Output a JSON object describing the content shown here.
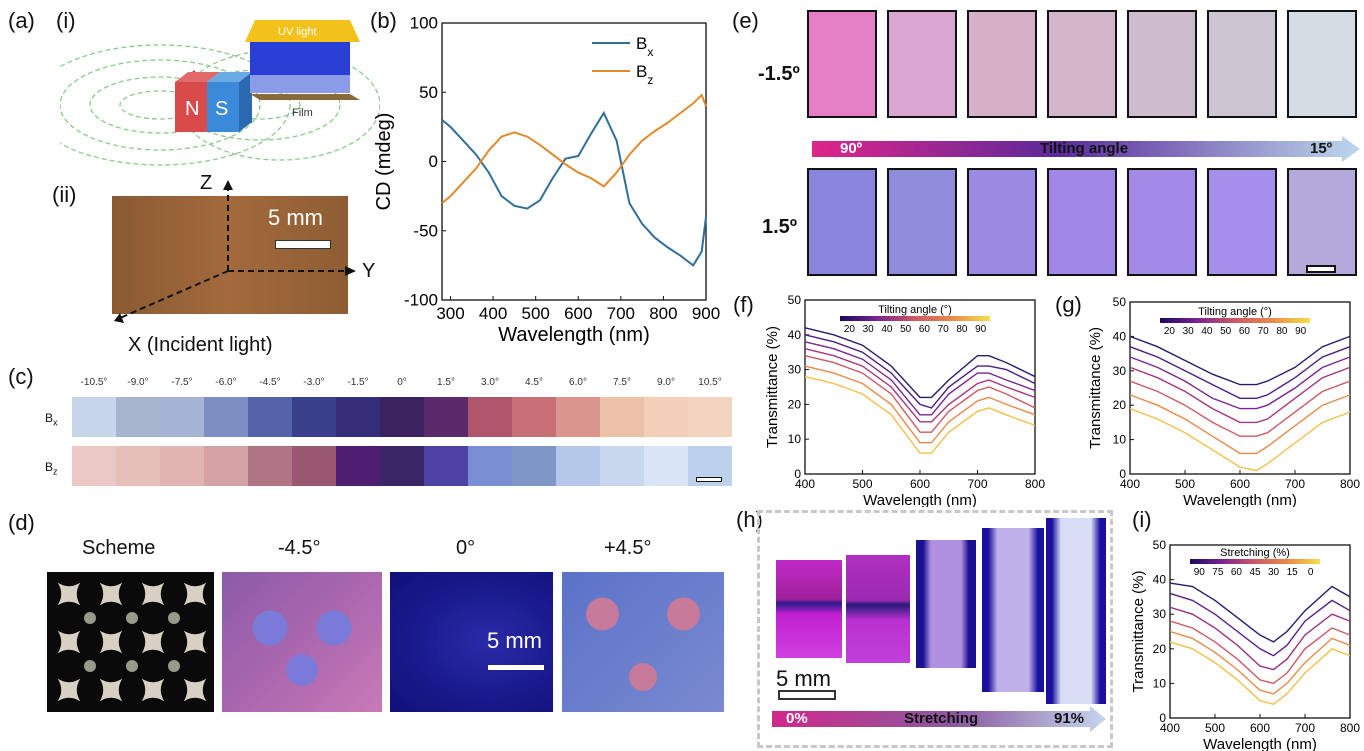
{
  "panel_labels": {
    "a": "(a)",
    "ai": "(i)",
    "aii": "(ii)",
    "b": "(b)",
    "c": "(c)",
    "d": "(d)",
    "e": "(e)",
    "f": "(f)",
    "g": "(g)",
    "h": "(h)",
    "i": "(i)"
  },
  "panel_a": {
    "uv_label": "UV light",
    "film_label": "Film",
    "magnet_n": "N",
    "magnet_s": "S",
    "axis_z": "Z",
    "axis_y": "Y",
    "axis_x": "X (Incident light)",
    "scale": "5 mm"
  },
  "panel_c": {
    "angles": [
      "-10.5°",
      "-9.0°",
      "-7.5°",
      "-6.0°",
      "-4.5°",
      "-3.0°",
      "-1.5°",
      "0°",
      "1.5°",
      "3.0°",
      "4.5°",
      "6.0°",
      "7.5°",
      "9.0°",
      "10.5°"
    ],
    "row_bx": "B",
    "row_bz": "B",
    "sub_x": "x",
    "sub_z": "z",
    "bx_colors": [
      "#c6d5e8",
      "#a8b5cf",
      "#a5b4d5",
      "#7d8fc2",
      "#5564a9",
      "#3a3f8c",
      "#342d78",
      "#3b235f",
      "#5a2a6a",
      "#b0566c",
      "#c67077",
      "#d9958e",
      "#edc0a8",
      "#f2cfb6",
      "#f2d4c0"
    ],
    "bz_colors": [
      "#ecc8c4",
      "#e6c0b8",
      "#e0b4b0",
      "#d4a2a2",
      "#b07584",
      "#9a5870",
      "#4e1e73",
      "#3a2566",
      "#4d43a4",
      "#7a8fd3",
      "#7f96c9",
      "#b6c8ea",
      "#c8d6ee",
      "#d9e5f4",
      "#bdd0ec"
    ]
  },
  "panel_d": {
    "labels": [
      "Scheme",
      "-4.5°",
      "0°",
      "+4.5°"
    ],
    "scale": "5 mm"
  },
  "panel_e": {
    "row1_label": "-1.5º",
    "row2_label": "1.5º",
    "arrow_start": "90º",
    "arrow_mid": "Tilting angle",
    "arrow_end": "15º",
    "row1_colors": [
      "#e680c6",
      "#d9a6cf",
      "#d6b0c7",
      "#d2b7cb",
      "#cdbccd",
      "#cdc6d2",
      "#d3dde3"
    ],
    "row2_colors": [
      "#8a85dc",
      "#8f8cdc",
      "#9a8ae2",
      "#a187e6",
      "#a28ae6",
      "#a58feb",
      "#b3aadb"
    ]
  },
  "panel_h": {
    "scale": "5 mm",
    "arrow_start": "0%",
    "arrow_mid": "Stretching",
    "arrow_end": "91%"
  },
  "chart_data": [
    {
      "id": "b",
      "type": "line",
      "xlabel": "Wavelength (nm)",
      "ylabel": "CD (mdeg)",
      "xlim": [
        280,
        900
      ],
      "ylim": [
        -100,
        100
      ],
      "xticks": [
        300,
        400,
        500,
        600,
        700,
        800,
        900
      ],
      "yticks": [
        -100,
        -50,
        0,
        50,
        100
      ],
      "series": [
        {
          "name": "B",
          "sub": "x",
          "color": "#2f6f9a",
          "x": [
            280,
            300,
            330,
            360,
            390,
            420,
            450,
            480,
            510,
            540,
            570,
            600,
            630,
            660,
            690,
            720,
            750,
            780,
            810,
            840,
            870,
            890,
            900
          ],
          "y": [
            30,
            25,
            15,
            5,
            -8,
            -25,
            -32,
            -34,
            -28,
            -12,
            2,
            4,
            20,
            35,
            15,
            -30,
            -45,
            -55,
            -62,
            -68,
            -75,
            -65,
            -40
          ]
        },
        {
          "name": "B",
          "sub": "z",
          "color": "#e28a2b",
          "x": [
            280,
            300,
            330,
            360,
            390,
            420,
            450,
            480,
            510,
            540,
            570,
            600,
            630,
            660,
            690,
            720,
            750,
            780,
            810,
            840,
            870,
            890,
            900
          ],
          "y": [
            -30,
            -25,
            -15,
            -5,
            8,
            18,
            21,
            18,
            12,
            5,
            -2,
            -8,
            -12,
            -18,
            -8,
            5,
            15,
            22,
            28,
            35,
            42,
            48,
            40
          ]
        }
      ]
    },
    {
      "id": "f",
      "type": "line",
      "xlabel": "Wavelength (nm)",
      "ylabel": "Transmittance (%)",
      "xlim": [
        400,
        800
      ],
      "ylim": [
        0,
        50
      ],
      "xticks": [
        400,
        500,
        600,
        700,
        800
      ],
      "yticks": [
        0,
        10,
        20,
        30,
        40,
        50
      ],
      "colorbar": {
        "title": "Tilting angle (°)",
        "ticks": [
          "20",
          "30",
          "40",
          "50",
          "60",
          "70",
          "80",
          "90"
        ]
      },
      "x": [
        400,
        450,
        500,
        550,
        600,
        620,
        650,
        700,
        720,
        750,
        800
      ],
      "series": [
        {
          "color": "#2a1a6e",
          "y": [
            42,
            40,
            37,
            31,
            22,
            22,
            27,
            34,
            34,
            32,
            28
          ]
        },
        {
          "color": "#4d1e86",
          "y": [
            40,
            38,
            35,
            29,
            20,
            19,
            25,
            31,
            31,
            30,
            26
          ]
        },
        {
          "color": "#7a2590",
          "y": [
            38,
            36,
            33,
            27,
            17,
            17,
            23,
            29,
            29,
            27,
            24
          ]
        },
        {
          "color": "#a5367f",
          "y": [
            36,
            34,
            31,
            25,
            15,
            15,
            20,
            26,
            27,
            25,
            22
          ]
        },
        {
          "color": "#cc5a64",
          "y": [
            34,
            32,
            29,
            23,
            12,
            12,
            18,
            24,
            25,
            23,
            19
          ]
        },
        {
          "color": "#e88a4a",
          "y": [
            31,
            29,
            26,
            20,
            9,
            9,
            15,
            21,
            22,
            20,
            17
          ]
        },
        {
          "color": "#f5c04a",
          "y": [
            28,
            26,
            23,
            17,
            6,
            6,
            12,
            18,
            19,
            17,
            14
          ]
        }
      ]
    },
    {
      "id": "g",
      "type": "line",
      "xlabel": "Wavelength (nm)",
      "ylabel": "Transmittance (%)",
      "xlim": [
        400,
        800
      ],
      "ylim": [
        0,
        50
      ],
      "xticks": [
        400,
        500,
        600,
        700,
        800
      ],
      "yticks": [
        0,
        10,
        20,
        30,
        40,
        50
      ],
      "colorbar": {
        "title": "Tilting angle (°)",
        "ticks": [
          "20",
          "30",
          "40",
          "50",
          "60",
          "70",
          "80",
          "90"
        ]
      },
      "x": [
        400,
        450,
        500,
        550,
        600,
        630,
        650,
        700,
        750,
        800
      ],
      "series": [
        {
          "color": "#2a1a6e",
          "y": [
            40,
            37,
            33,
            29,
            26,
            26,
            27,
            31,
            37,
            40
          ]
        },
        {
          "color": "#4d1e86",
          "y": [
            37,
            34,
            30,
            26,
            22,
            22,
            23,
            28,
            34,
            37
          ]
        },
        {
          "color": "#7a2590",
          "y": [
            34,
            31,
            27,
            22,
            19,
            19,
            20,
            25,
            31,
            34
          ]
        },
        {
          "color": "#a5367f",
          "y": [
            31,
            28,
            24,
            19,
            15,
            15,
            16,
            22,
            28,
            31
          ]
        },
        {
          "color": "#cc5a64",
          "y": [
            27,
            24,
            20,
            15,
            11,
            11,
            12,
            18,
            24,
            27
          ]
        },
        {
          "color": "#e88a4a",
          "y": [
            23,
            20,
            16,
            11,
            6,
            6,
            8,
            14,
            20,
            23
          ]
        },
        {
          "color": "#f5c04a",
          "y": [
            19,
            16,
            12,
            7,
            2,
            1,
            3,
            9,
            15,
            18
          ]
        }
      ]
    },
    {
      "id": "i",
      "type": "line",
      "xlabel": "Wavelength (nm)",
      "ylabel": "Transmittance (%)",
      "xlim": [
        400,
        800
      ],
      "ylim": [
        0,
        50
      ],
      "xticks": [
        400,
        500,
        600,
        700,
        800
      ],
      "yticks": [
        0,
        10,
        20,
        30,
        40,
        50
      ],
      "colorbar": {
        "title": "Stretching (%)",
        "ticks": [
          "90",
          "75",
          "60",
          "45",
          "30",
          "15",
          "0"
        ]
      },
      "x": [
        400,
        450,
        500,
        550,
        600,
        630,
        660,
        700,
        760,
        800
      ],
      "series": [
        {
          "color": "#2a1a6e",
          "y": [
            39,
            38,
            34,
            29,
            24,
            22,
            25,
            31,
            38,
            35
          ]
        },
        {
          "color": "#5a1f8a",
          "y": [
            36,
            34,
            30,
            25,
            20,
            18,
            21,
            28,
            34,
            31
          ]
        },
        {
          "color": "#9a3385",
          "y": [
            32,
            30,
            26,
            21,
            15,
            14,
            17,
            24,
            30,
            28
          ]
        },
        {
          "color": "#cc5a64",
          "y": [
            28,
            26,
            22,
            17,
            11,
            10,
            13,
            20,
            26,
            24
          ]
        },
        {
          "color": "#e88a4a",
          "y": [
            25,
            23,
            19,
            14,
            8,
            7,
            10,
            16,
            23,
            21
          ]
        },
        {
          "color": "#f5c04a",
          "y": [
            22,
            20,
            16,
            11,
            5,
            4,
            7,
            13,
            20,
            18
          ]
        }
      ]
    }
  ]
}
